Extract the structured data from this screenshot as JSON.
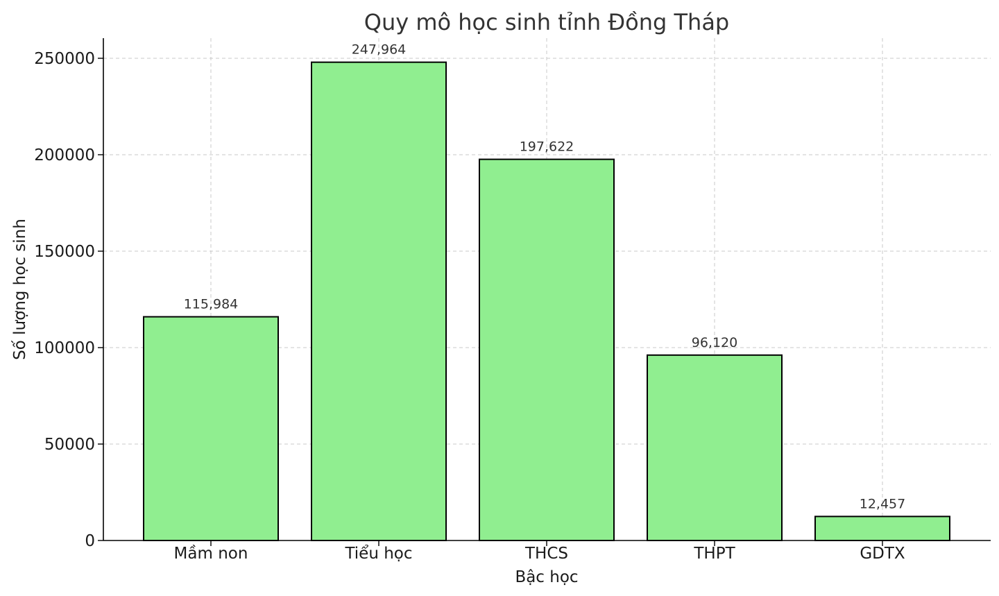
{
  "chart_data": {
    "type": "bar",
    "title": "Quy mô học sinh tỉnh Đồng Tháp",
    "xlabel": "Bậc học",
    "ylabel": "Số lượng học sinh",
    "categories": [
      "Mầm non",
      "Tiểu học",
      "THCS",
      "THPT",
      "GDTX"
    ],
    "values": [
      115984,
      247964,
      197622,
      96120,
      12457
    ],
    "data_labels": [
      "115,984",
      "247,964",
      "197,622",
      "96,120",
      "12,457"
    ],
    "yticks": [
      0,
      50000,
      100000,
      150000,
      200000,
      250000
    ],
    "ytick_labels": [
      "0",
      "50000",
      "100000",
      "150000",
      "200000",
      "250000"
    ],
    "ylim": [
      0,
      260000
    ],
    "grid": true,
    "bar_color": "#90ee90",
    "edge_color": "#000000"
  }
}
